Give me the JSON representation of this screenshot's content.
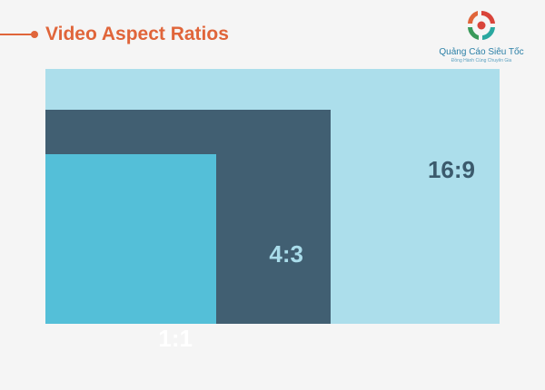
{
  "title": "Video Aspect Ratios",
  "logo": {
    "name": "Quảng Cáo Siêu Tốc",
    "tagline": "Đồng Hành Cùng Chuyên Gia"
  },
  "ratios": [
    {
      "label": "16:9",
      "color": "#acdeeb",
      "text_color": "#3b5a6c"
    },
    {
      "label": "4:3",
      "color": "#415f72",
      "text_color": "#a9dcea"
    },
    {
      "label": "1:1",
      "color": "#54bfd8",
      "text_color": "#ffffff"
    }
  ],
  "colors": {
    "accent": "#e0653a",
    "background": "#f5f5f5"
  }
}
